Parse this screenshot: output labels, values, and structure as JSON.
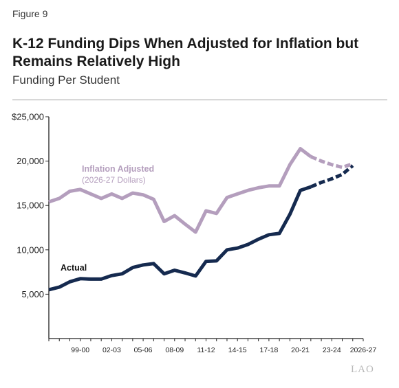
{
  "figure_label": "Figure 9",
  "title": "K-12 Funding Dips When Adjusted for Inflation but Remains Relatively High",
  "subtitle": "Funding Per Student",
  "logo_text": "LAO",
  "colors": {
    "actual": "#152a4f",
    "adjusted": "#b49ebd",
    "axis": "#222222"
  },
  "chart_data": {
    "type": "line",
    "title": "K-12 Funding Dips When Adjusted for Inflation but Remains Relatively High",
    "subtitle": "Funding Per Student",
    "ylim": [
      0,
      25000
    ],
    "y_ticks": [
      5000,
      10000,
      15000,
      20000,
      25000
    ],
    "y_tick_labels": [
      "5,000",
      "10,000",
      "15,000",
      "20,000",
      "$25,000"
    ],
    "x_tick_labels": [
      "99-00",
      "02-03",
      "05-06",
      "08-09",
      "11-12",
      "14-15",
      "17-18",
      "20-21",
      "23-24",
      "2026-27"
    ],
    "x": [
      "96-97",
      "97-98",
      "98-99",
      "99-00",
      "00-01",
      "01-02",
      "02-03",
      "03-04",
      "04-05",
      "05-06",
      "06-07",
      "07-08",
      "08-09",
      "09-10",
      "10-11",
      "11-12",
      "12-13",
      "13-14",
      "14-15",
      "15-16",
      "16-17",
      "17-18",
      "18-19",
      "19-20",
      "20-21",
      "21-22",
      "22-23",
      "23-24",
      "24-25",
      "25-26",
      "2026-27"
    ],
    "projected_from_index": 25,
    "series": [
      {
        "name": "Actual",
        "color": "#152a4f",
        "values": [
          5500,
          5800,
          6400,
          6750,
          6700,
          6700,
          7100,
          7300,
          8000,
          8300,
          8450,
          7300,
          7700,
          7400,
          7050,
          8700,
          8750,
          10000,
          10200,
          10600,
          11200,
          11700,
          11850,
          14000,
          16700,
          17100,
          17600,
          18000,
          18500,
          19500,
          null
        ]
      },
      {
        "name": "Inflation Adjusted",
        "label_note": "(2026-27 Dollars)",
        "color": "#b49ebd",
        "values": [
          15400,
          15800,
          16600,
          16800,
          16300,
          15800,
          16300,
          15800,
          16400,
          16200,
          15700,
          13200,
          13850,
          12900,
          12000,
          14400,
          14100,
          15900,
          16300,
          16700,
          17000,
          17200,
          17200,
          19600,
          21400,
          20500,
          20000,
          19600,
          19300,
          19700,
          null
        ]
      }
    ],
    "annotations": [
      {
        "text": "Inflation Adjusted",
        "series": "Inflation Adjusted"
      },
      {
        "text": "(2026-27 Dollars)",
        "series": "Inflation Adjusted"
      },
      {
        "text": "Actual",
        "series": "Actual"
      }
    ]
  }
}
